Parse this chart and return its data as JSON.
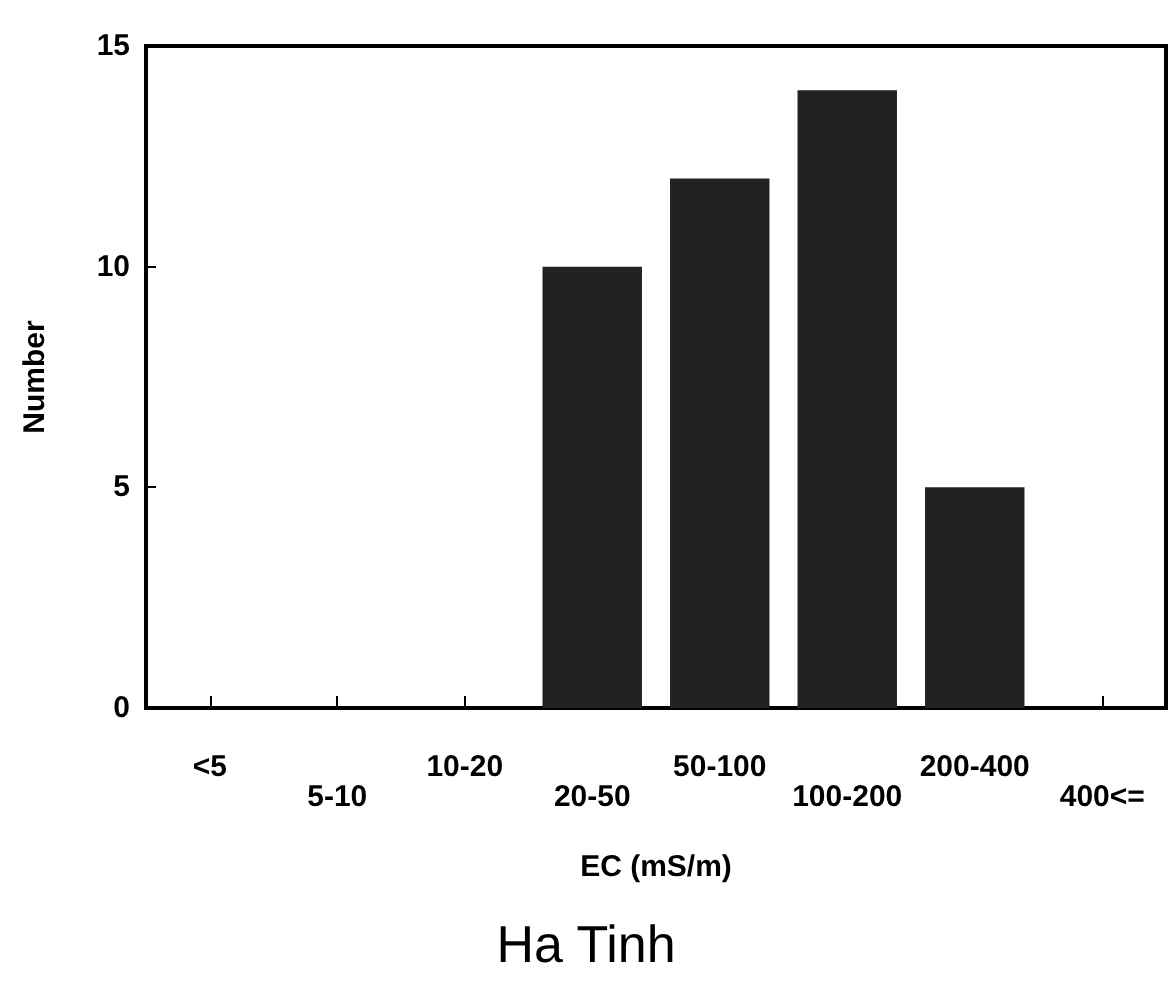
{
  "chart_data": {
    "type": "bar",
    "title": "Ha Tinh",
    "xlabel": "EC (mS/m)",
    "ylabel": "Number",
    "categories": [
      "<5",
      "5-10",
      "10-20",
      "20-50",
      "50-100",
      "100-200",
      "200-400",
      "400<="
    ],
    "values": [
      0,
      0,
      0,
      10,
      12,
      14,
      5,
      0
    ],
    "color": "#222222",
    "ylim": [
      0,
      15
    ],
    "yticks": [
      0,
      5,
      10,
      15
    ],
    "grid": false
  }
}
